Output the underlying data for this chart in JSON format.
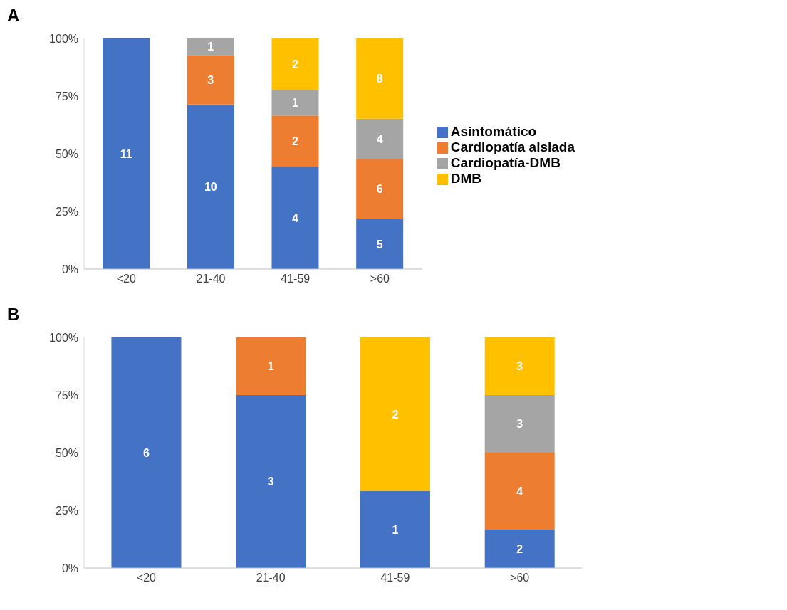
{
  "chart_data": [
    {
      "type": "bar",
      "title": "A",
      "stacked": true,
      "categories": [
        "<20",
        "21-40",
        "41-59",
        ">60"
      ],
      "ylim": [
        0,
        100
      ],
      "yticks": [
        {
          "value": 0,
          "label": "0%"
        },
        {
          "value": 25,
          "label": "25%"
        },
        {
          "value": 50,
          "label": "50%"
        },
        {
          "value": 75,
          "label": "75%"
        },
        {
          "value": 100,
          "label": "100%"
        }
      ],
      "legend": "right",
      "series": [
        {
          "name": "Asintomático",
          "color": "#4472c4",
          "values": [
            100,
            71.4,
            44.4,
            21.7
          ]
        },
        {
          "name": "Cardiopatía aislada",
          "color": "#ed7d31",
          "values": [
            null,
            21.4,
            22.2,
            26.1
          ]
        },
        {
          "name": "Cardiopatía-DMB",
          "color": "#a5a5a5",
          "values": [
            null,
            7.2,
            11.1,
            17.4
          ]
        },
        {
          "name": "DMB",
          "color": "#ffc000",
          "values": [
            null,
            null,
            22.3,
            34.8
          ]
        }
      ],
      "annotations": [
        "11",
        "10",
        "3",
        "1",
        "4",
        "2",
        "1",
        "2",
        "5",
        "6",
        "4",
        "8"
      ]
    },
    {
      "type": "bar",
      "title": "B",
      "stacked": true,
      "categories": [
        "<20",
        "21-40",
        "41-59",
        ">60"
      ],
      "ylim": [
        0,
        100
      ],
      "yticks": [
        {
          "value": 0,
          "label": "0%"
        },
        {
          "value": 25,
          "label": "25%"
        },
        {
          "value": 50,
          "label": "50%"
        },
        {
          "value": 75,
          "label": "75%"
        },
        {
          "value": 100,
          "label": "100%"
        }
      ],
      "series": [
        {
          "color": "#4472c4",
          "values": [
            100,
            75,
            33.3,
            16.7
          ]
        },
        {
          "color": "#ed7d31",
          "values": [
            null,
            25,
            null,
            33.3
          ]
        },
        {
          "color": "#a5a5a5",
          "values": [
            null,
            null,
            null,
            25
          ]
        },
        {
          "color": "#ffc000",
          "values": [
            null,
            null,
            66.7,
            25
          ]
        }
      ],
      "annotations": [
        "6",
        "3",
        "1",
        "1",
        "2",
        "2",
        "4",
        "3",
        "3"
      ]
    }
  ]
}
